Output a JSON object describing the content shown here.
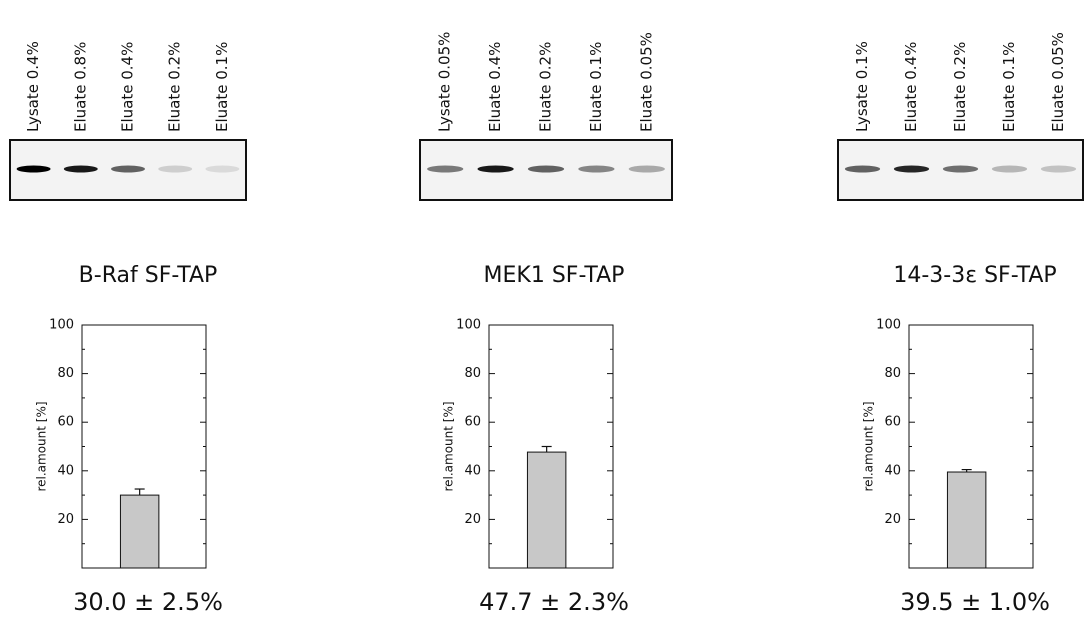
{
  "chart_data": [
    {
      "type": "bar",
      "title": "B-Raf SF-TAP",
      "lanes": [
        "Lysate 0.4%",
        "Eluate 0.8%",
        "Eluate 0.4%",
        "Eluate 0.2%",
        "Eluate 0.1%"
      ],
      "ylabel": "rel.amount [%]",
      "values": [
        30.0
      ],
      "errors": [
        2.5
      ],
      "caption": "30.0 ± 2.5%",
      "ylim": [
        0,
        100
      ],
      "yticks": [
        20,
        40,
        60,
        80,
        100
      ],
      "color": "#c8c8c8"
    },
    {
      "type": "bar",
      "title": "MEK1 SF-TAP",
      "lanes": [
        "Lysate 0.05%",
        "Eluate 0.4%",
        "Eluate 0.2%",
        "Eluate 0.1%",
        "Eluate 0.05%"
      ],
      "ylabel": "rel.amount [%]",
      "values": [
        47.7
      ],
      "errors": [
        2.3
      ],
      "caption": "47.7 ± 2.3%",
      "ylim": [
        0,
        100
      ],
      "yticks": [
        20,
        40,
        60,
        80,
        100
      ],
      "color": "#c8c8c8"
    },
    {
      "type": "bar",
      "title": "14-3-3ε SF-TAP",
      "lanes": [
        "Lysate 0.1%",
        "Eluate 0.4%",
        "Eluate 0.2%",
        "Eluate 0.1%",
        "Eluate 0.05%"
      ],
      "ylabel": "rel.amount [%]",
      "values": [
        39.5
      ],
      "errors": [
        1.0
      ],
      "caption": "39.5 ± 1.0%",
      "ylim": [
        0,
        100
      ],
      "yticks": [
        20,
        40,
        60,
        80,
        100
      ],
      "color": "#c8c8c8"
    }
  ]
}
